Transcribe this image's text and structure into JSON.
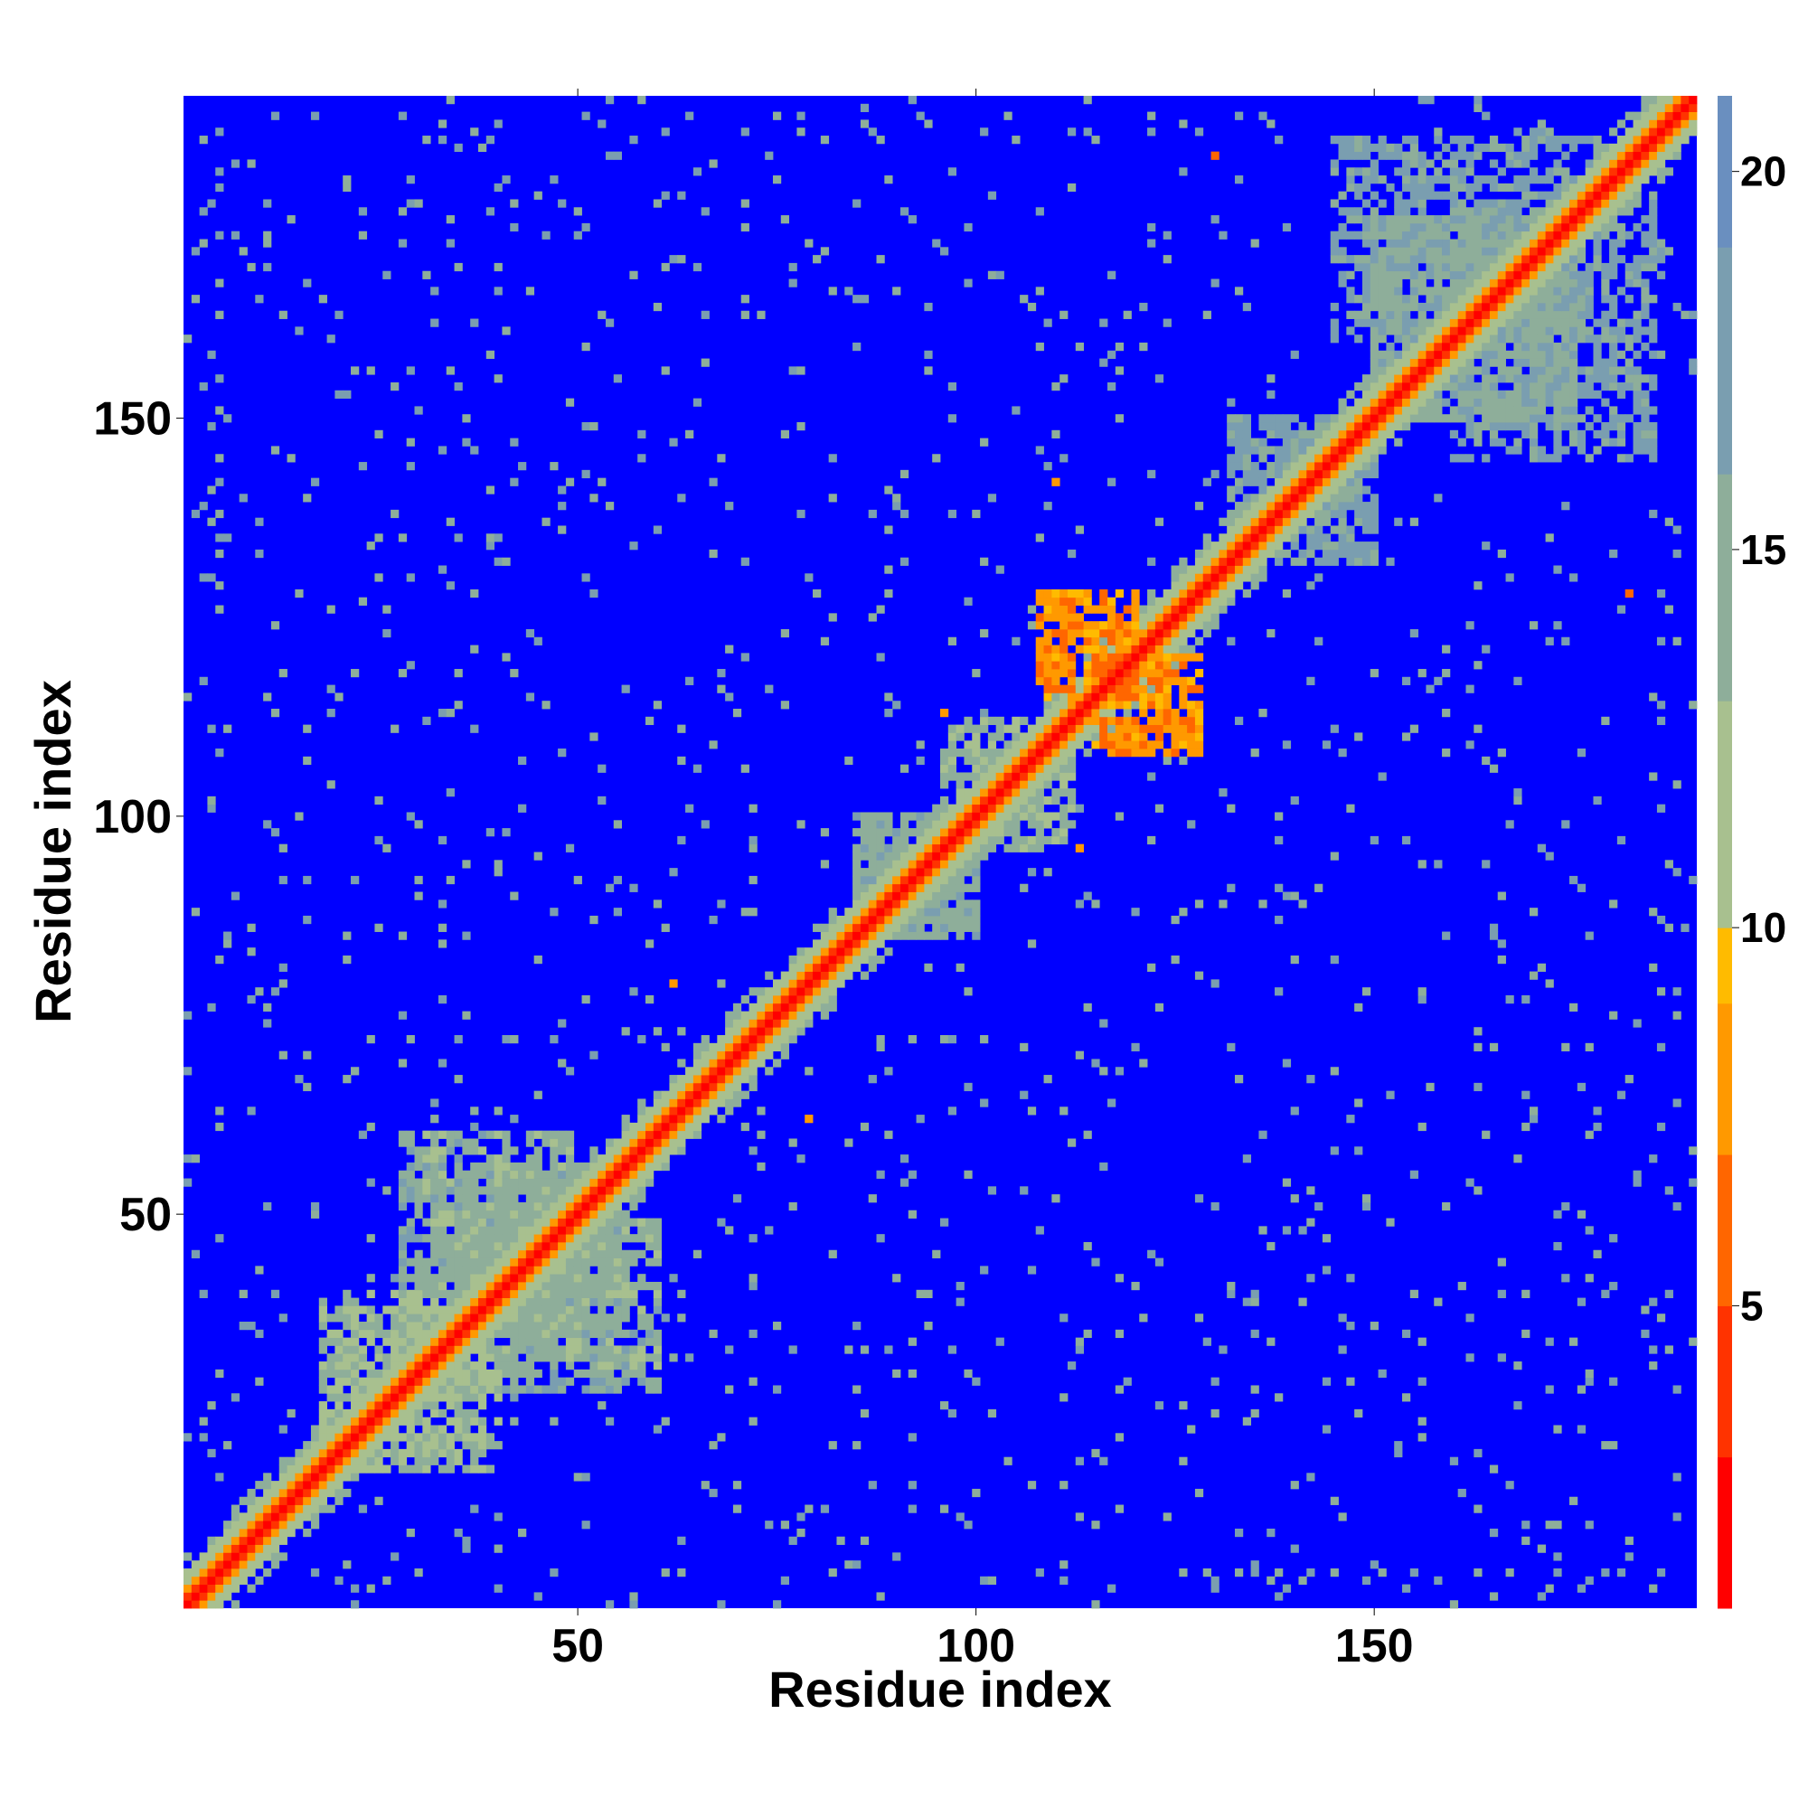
{
  "chart_data": {
    "type": "heatmap",
    "title": "",
    "xlabel": "Residue index",
    "ylabel": "Residue index",
    "xlim": [
      1,
      190
    ],
    "ylim": [
      1,
      190
    ],
    "x_ticks": [
      50,
      100,
      150
    ],
    "y_ticks": [
      50,
      100,
      150
    ],
    "colorbar": {
      "range": [
        1,
        21
      ],
      "ticks": [
        5,
        10,
        15,
        20
      ],
      "colors": [
        "#ff0000",
        "#ff3300",
        "#ff6600",
        "#ff9900",
        "#ffbb00",
        "#a8c08f",
        "#8eae9a",
        "#7a9eb0",
        "#6a8fbf",
        "#0000ff"
      ],
      "stops": [
        1,
        3,
        5,
        7,
        9,
        10,
        13,
        16,
        19,
        21
      ]
    },
    "grid": false,
    "description_values": {
      "diagonal_value": 1,
      "background_value": 21
    },
    "contact_patches": [
      {
        "x": [
          35,
          55
        ],
        "y": [
          35,
          55
        ],
        "value": 14
      },
      {
        "x": [
          30,
          50
        ],
        "y": [
          40,
          60
        ],
        "value": 13
      },
      {
        "x": [
          40,
          60
        ],
        "y": [
          28,
          42
        ],
        "value": 14
      },
      {
        "x": [
          20,
          40
        ],
        "y": [
          18,
          38
        ],
        "value": 12
      },
      {
        "x": [
          85,
          100
        ],
        "y": [
          85,
          100
        ],
        "value": 14
      },
      {
        "x": [
          100,
          112
        ],
        "y": [
          96,
          108
        ],
        "value": 13
      },
      {
        "x": [
          108,
          120
        ],
        "y": [
          115,
          128
        ],
        "value": 7
      },
      {
        "x": [
          115,
          128
        ],
        "y": [
          108,
          120
        ],
        "value": 7
      },
      {
        "x": [
          132,
          150
        ],
        "y": [
          132,
          150
        ],
        "value": 16
      },
      {
        "x": [
          150,
          175
        ],
        "y": [
          150,
          175
        ],
        "value": 15
      },
      {
        "x": [
          145,
          180
        ],
        "y": [
          160,
          185
        ],
        "value": 16
      }
    ],
    "isolated_contacts": [
      {
        "x": 130,
        "y": 183,
        "value": 6
      },
      {
        "x": 182,
        "y": 128,
        "value": 6
      },
      {
        "x": 110,
        "y": 142,
        "value": 7
      },
      {
        "x": 62,
        "y": 79,
        "value": 7
      },
      {
        "x": 79,
        "y": 62,
        "value": 7
      },
      {
        "x": 96,
        "y": 113,
        "value": 7
      },
      {
        "x": 113,
        "y": 96,
        "value": 7
      }
    ]
  }
}
